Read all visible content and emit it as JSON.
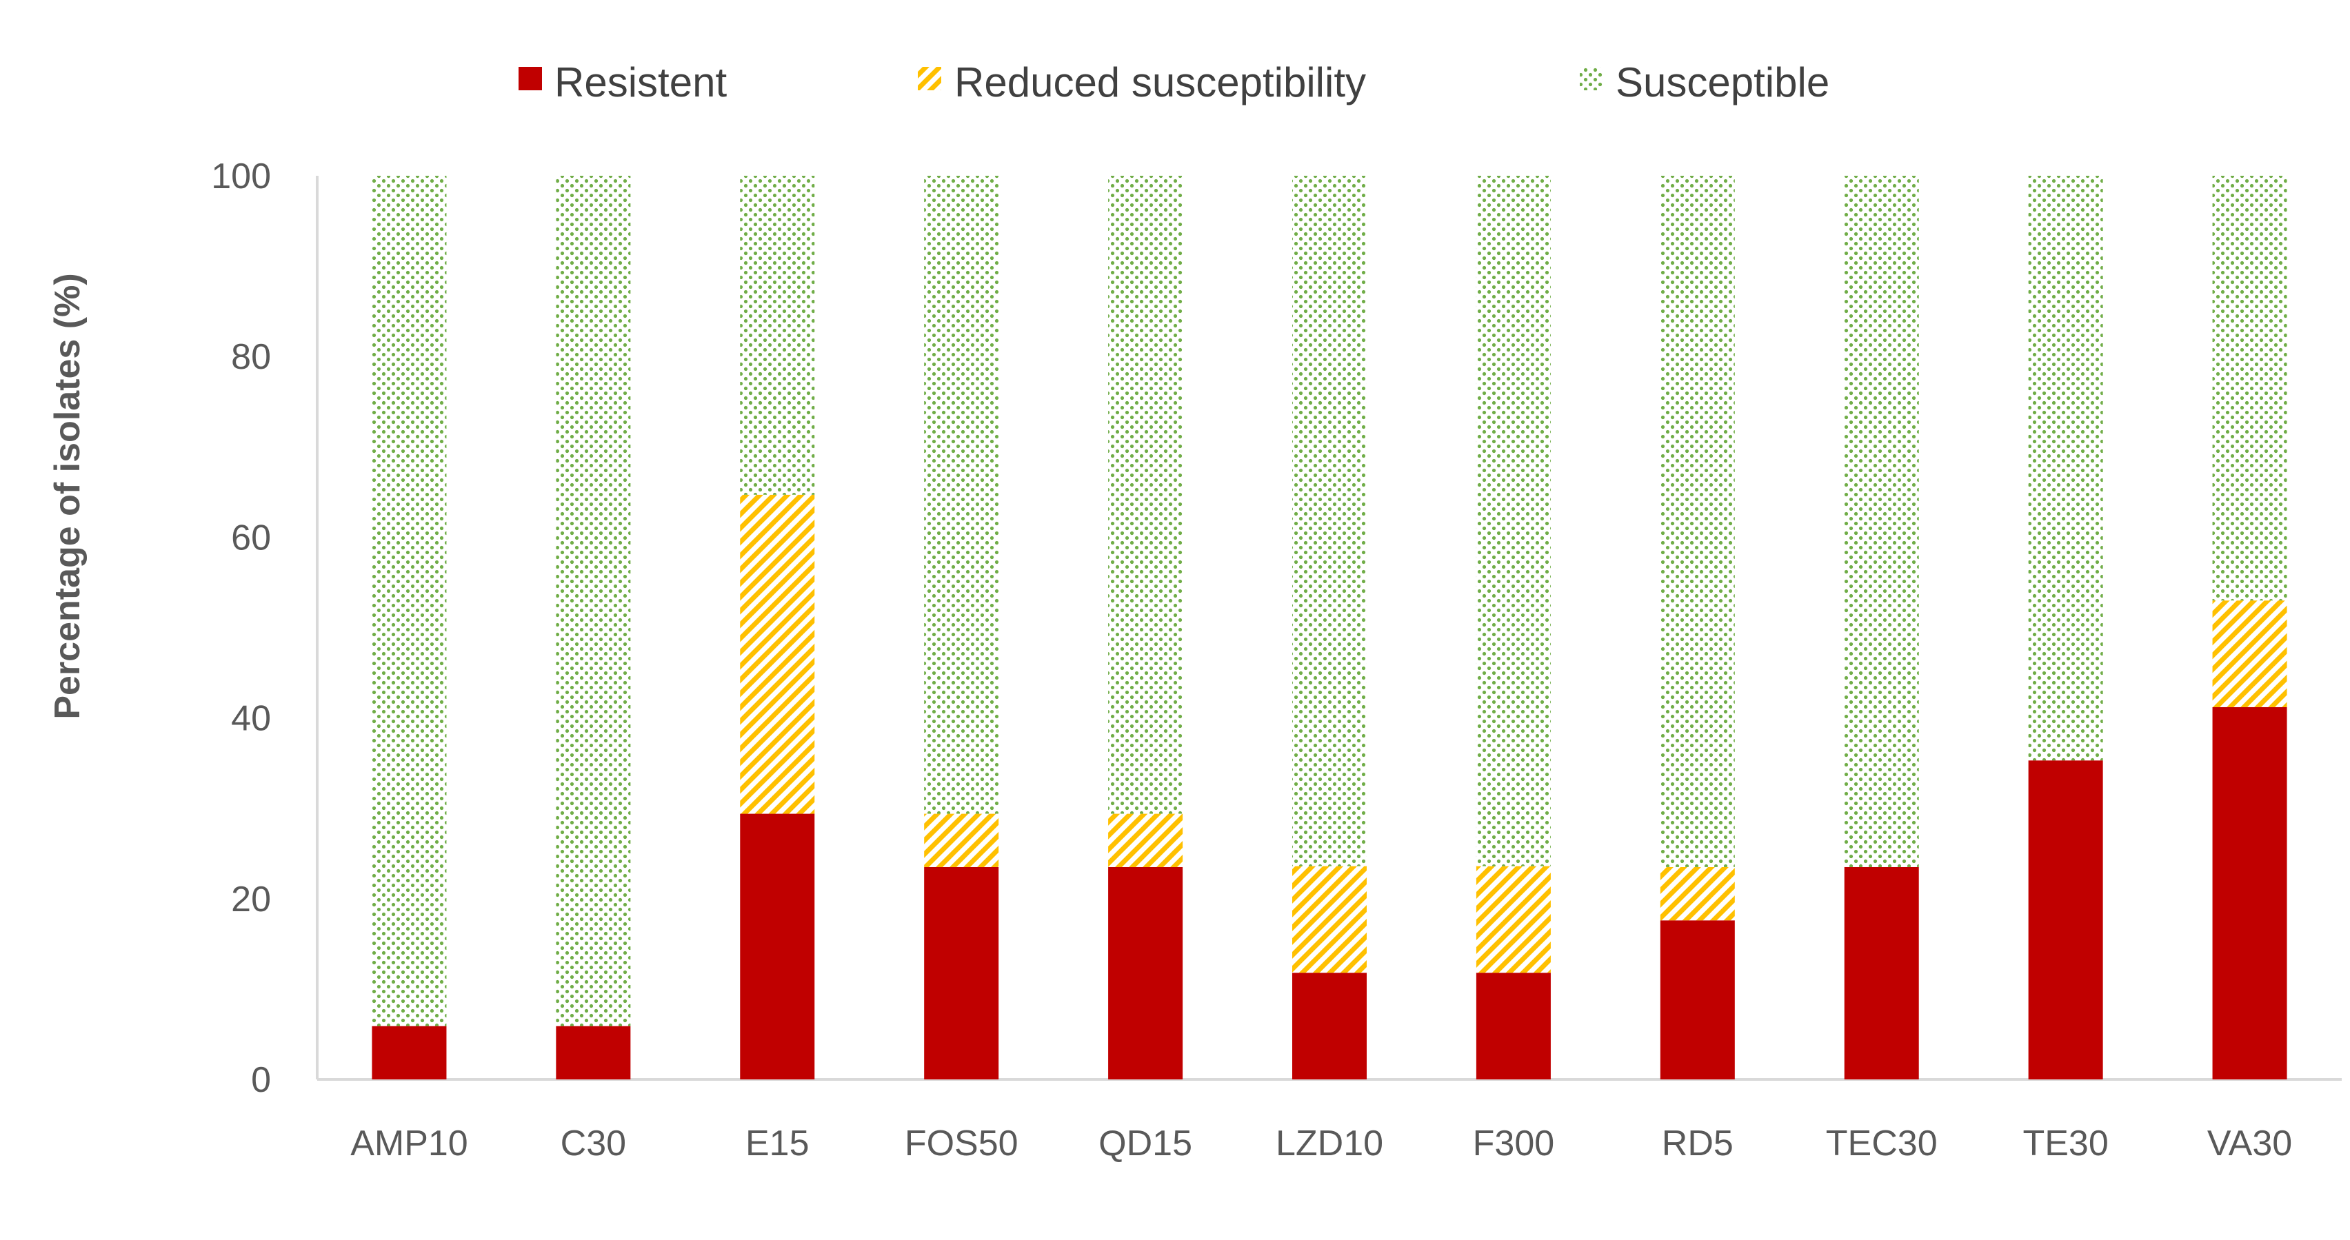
{
  "chart_data": {
    "type": "bar",
    "stacked": true,
    "title": "",
    "xlabel": "",
    "ylabel": "Percentage of isolates (%)",
    "ylim": [
      0,
      100
    ],
    "yticks": [
      0,
      20,
      40,
      60,
      80,
      100
    ],
    "grid": false,
    "legend_position": "top",
    "categories": [
      "AMP10",
      "C30",
      "E15",
      "FOS50",
      "QD15",
      "LZD10",
      "F300",
      "RD5",
      "TEC30",
      "TE30",
      "VA30"
    ],
    "series": [
      {
        "name": "Resistent",
        "color": "#C00000",
        "pattern": "solid",
        "values": [
          5.9,
          5.9,
          29.4,
          23.5,
          23.5,
          11.8,
          11.8,
          17.6,
          23.5,
          35.3,
          41.2
        ]
      },
      {
        "name": "Reduced susceptibility",
        "color": "#FFC000",
        "pattern": "diagonal-stripes",
        "values": [
          0,
          0,
          35.3,
          5.9,
          5.9,
          11.8,
          11.8,
          5.9,
          0,
          0,
          11.8
        ]
      },
      {
        "name": "Susceptible",
        "color": "#70AD47",
        "pattern": "dots",
        "values": [
          94.1,
          94.1,
          35.3,
          70.6,
          70.6,
          76.4,
          76.4,
          76.5,
          76.5,
          64.7,
          47.0
        ]
      }
    ]
  }
}
